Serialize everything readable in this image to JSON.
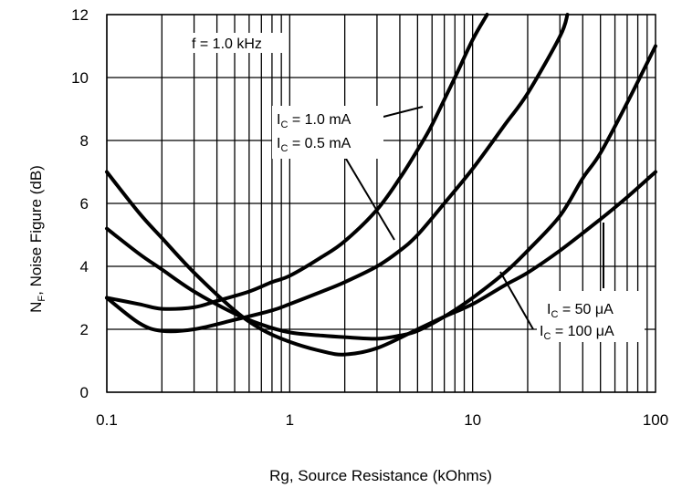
{
  "chart_data": {
    "type": "line",
    "xscale": "log",
    "xlim": [
      0.1,
      100
    ],
    "ylim": [
      0,
      12
    ],
    "grid": true,
    "xlabel": "Rg, Source Resistance (kOhms)",
    "ylabel": {
      "prefix": "N",
      "sub": "F",
      "suffix": ", Noise Figure (dB)"
    },
    "xticks": [
      {
        "value": 0.1,
        "label": "0.1"
      },
      {
        "value": 1,
        "label": "1"
      },
      {
        "value": 10,
        "label": "10"
      },
      {
        "value": 100,
        "label": "100"
      }
    ],
    "yticks": [
      {
        "value": 0,
        "label": "0"
      },
      {
        "value": 2,
        "label": "2"
      },
      {
        "value": 4,
        "label": "4"
      },
      {
        "value": 6,
        "label": "6"
      },
      {
        "value": 8,
        "label": "8"
      },
      {
        "value": 10,
        "label": "10"
      },
      {
        "value": 12,
        "label": "12"
      }
    ],
    "condition_label": "f = 1.0 kHz",
    "series": [
      {
        "label": {
          "prefix": "I",
          "sub": "C",
          "suffix": " = 1.0 mA"
        },
        "points": [
          [
            0.1,
            3.0
          ],
          [
            0.15,
            2.8
          ],
          [
            0.2,
            2.65
          ],
          [
            0.3,
            2.7
          ],
          [
            0.4,
            2.9
          ],
          [
            0.6,
            3.2
          ],
          [
            0.8,
            3.5
          ],
          [
            1.0,
            3.7
          ],
          [
            1.5,
            4.3
          ],
          [
            2.0,
            4.8
          ],
          [
            3.0,
            5.8
          ],
          [
            4.0,
            6.8
          ],
          [
            5.0,
            7.7
          ],
          [
            6.0,
            8.5
          ],
          [
            8.0,
            10.0
          ],
          [
            10.0,
            11.2
          ],
          [
            12.0,
            12.0
          ]
        ]
      },
      {
        "label": {
          "prefix": "I",
          "sub": "C",
          "suffix": " = 0.5 mA"
        },
        "points": [
          [
            0.1,
            3.0
          ],
          [
            0.15,
            2.2
          ],
          [
            0.2,
            1.95
          ],
          [
            0.3,
            2.0
          ],
          [
            0.5,
            2.3
          ],
          [
            0.8,
            2.6
          ],
          [
            1.0,
            2.8
          ],
          [
            1.5,
            3.2
          ],
          [
            2.0,
            3.5
          ],
          [
            3.0,
            4.0
          ],
          [
            4.0,
            4.5
          ],
          [
            5.0,
            5.0
          ],
          [
            7.0,
            6.0
          ],
          [
            10.0,
            7.1
          ],
          [
            15.0,
            8.5
          ],
          [
            20.0,
            9.5
          ],
          [
            30.0,
            11.3
          ],
          [
            33.0,
            12.0
          ]
        ]
      },
      {
        "label": {
          "prefix": "I",
          "sub": "C",
          "suffix": " = 100 μA"
        },
        "points": [
          [
            0.1,
            5.2
          ],
          [
            0.15,
            4.4
          ],
          [
            0.2,
            3.9
          ],
          [
            0.3,
            3.2
          ],
          [
            0.5,
            2.5
          ],
          [
            0.7,
            2.15
          ],
          [
            1.0,
            1.9
          ],
          [
            1.5,
            1.8
          ],
          [
            2.0,
            1.75
          ],
          [
            3.0,
            1.7
          ],
          [
            4.0,
            1.8
          ],
          [
            5.0,
            1.95
          ],
          [
            7.0,
            2.4
          ],
          [
            10.0,
            3.0
          ],
          [
            15.0,
            3.8
          ],
          [
            20.0,
            4.5
          ],
          [
            30.0,
            5.6
          ],
          [
            40.0,
            6.8
          ],
          [
            50.0,
            7.6
          ],
          [
            70.0,
            9.2
          ],
          [
            100.0,
            11.0
          ]
        ]
      },
      {
        "label": {
          "prefix": "I",
          "sub": "C",
          "suffix": " = 50 μA"
        },
        "points": [
          [
            0.1,
            7.0
          ],
          [
            0.15,
            5.7
          ],
          [
            0.2,
            4.9
          ],
          [
            0.3,
            3.8
          ],
          [
            0.5,
            2.6
          ],
          [
            0.7,
            2.0
          ],
          [
            1.0,
            1.6
          ],
          [
            1.5,
            1.3
          ],
          [
            2.0,
            1.2
          ],
          [
            3.0,
            1.4
          ],
          [
            5.0,
            2.0
          ],
          [
            7.0,
            2.4
          ],
          [
            10.0,
            2.8
          ],
          [
            15.0,
            3.4
          ],
          [
            20.0,
            3.8
          ],
          [
            30.0,
            4.5
          ],
          [
            50.0,
            5.5
          ],
          [
            70.0,
            6.2
          ],
          [
            100.0,
            7.0
          ]
        ]
      }
    ]
  }
}
